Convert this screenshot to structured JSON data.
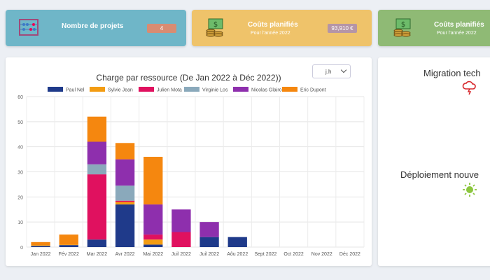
{
  "kpis": {
    "projects": {
      "title": "Nombre de projets",
      "value": "4",
      "icon": "abacus-icon"
    },
    "costs_1": {
      "title": "Coûts planifiés",
      "subtitle": "Pour l'année 2022",
      "value": "93,910 €",
      "icon": "money-icon"
    },
    "costs_2": {
      "title": "Coûts planifiés",
      "subtitle": "Pour l'année 2022",
      "icon": "money-icon"
    }
  },
  "unit_select": {
    "value": "j.h"
  },
  "projects": [
    {
      "title": "Migration tech",
      "weather_icon": "storm-cloud-icon"
    },
    {
      "title": "Déploiement nouve",
      "weather_icon": "sun-icon"
    }
  ],
  "chart_data": {
    "type": "bar",
    "stacked": true,
    "title": "Charge par ressource   (De Jan 2022 à Déc 2022))",
    "categories": [
      "Jan 2022",
      "Fév 2022",
      "Mar 2022",
      "Avr 2022",
      "Mai 2022",
      "Juil 2022",
      "Juil 2022",
      "Aôu 2022",
      "Sept 2022",
      "Oct 2022",
      "Nov 2022",
      "Déc 2022"
    ],
    "ylim": [
      0,
      60
    ],
    "yticks": [
      "0",
      "10",
      "20",
      "30",
      "40",
      "50",
      "60"
    ],
    "legend_position": "top",
    "grid": true,
    "series": [
      {
        "name": "Paul Nel",
        "color": "#1f3a8a",
        "values": [
          0.5,
          0.8,
          3,
          17,
          1,
          0,
          4,
          4,
          0,
          0,
          0,
          0
        ]
      },
      {
        "name": "Sylvie Jean",
        "color": "#f39c12",
        "values": [
          0.3,
          0.2,
          0,
          1,
          2,
          0,
          0,
          0,
          0,
          0,
          0,
          0
        ]
      },
      {
        "name": "Julien Mota",
        "color": "#e0115f",
        "values": [
          0,
          0,
          26,
          0.5,
          2,
          6,
          0,
          0,
          0,
          0,
          0,
          0
        ]
      },
      {
        "name": "Virginie Los",
        "color": "#8aa9bb",
        "values": [
          0,
          0,
          4,
          6,
          0,
          0,
          0,
          0,
          0,
          0,
          0,
          0
        ]
      },
      {
        "name": "Nicolas Glairo",
        "color": "#8e2fad",
        "values": [
          0,
          0,
          9,
          10.5,
          12,
          9,
          6,
          0,
          0,
          0,
          0,
          0
        ]
      },
      {
        "name": "Eric Dupont",
        "color": "#f5870f",
        "values": [
          1.2,
          4,
          10,
          6.5,
          19,
          0,
          0,
          0,
          0,
          0,
          0,
          0
        ]
      }
    ]
  }
}
